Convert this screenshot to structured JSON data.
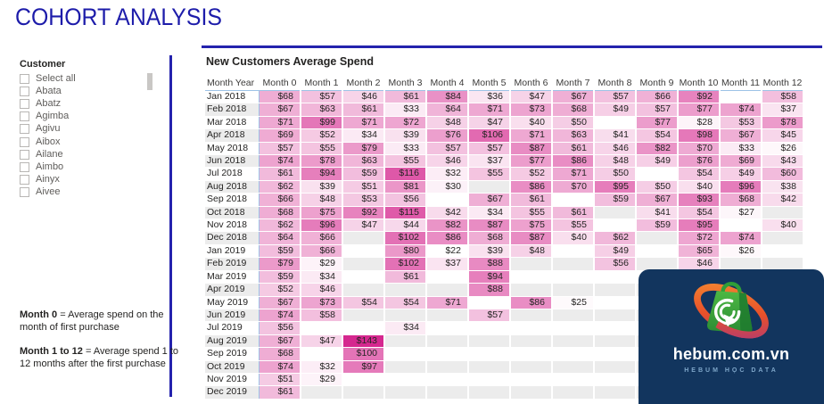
{
  "page": {
    "title": "COHORT ANALYSIS"
  },
  "colors": {
    "accent_blue": "#2422ad",
    "title_blue": "#1d1caa",
    "band_gray": "#ececec",
    "grid_blue": "#9dc3e6",
    "logo_navy": "#12355e",
    "logo_green": "#3fa63d",
    "logo_orange": "#f08030"
  },
  "icons": {
    "checkbox": "empty-square",
    "scrollbar_thumb": "gray-rect",
    "logo_mark": "shopping-bag-with-click-target-and-orange-ring"
  },
  "sidebar": {
    "filter_title": "Customer",
    "items": [
      "Select all",
      "Abata",
      "Abatz",
      "Agimba",
      "Agivu",
      "Aibox",
      "Ailane",
      "Aimbo",
      "Ainyx",
      "Aivee"
    ],
    "notes": [
      {
        "bold": "Month 0",
        "rest": " = Average spend on the month of first purchase"
      },
      {
        "bold": "Month 1 to 12",
        "rest": " = Average spend 1 to 12 months after the first purchase"
      }
    ]
  },
  "logo": {
    "domain": "hebum.com.vn",
    "tagline": "HEBUM HỌC DATA"
  },
  "chart_data": {
    "type": "heatmap",
    "title": "New Customers Average Spend",
    "corner_label": "Month Year",
    "value_prefix": "$",
    "color_scale": {
      "min": 22,
      "max": 143,
      "low": "#ffffff",
      "high": "#d5288f"
    },
    "x_labels": [
      "Month 0",
      "Month 1",
      "Month 2",
      "Month 3",
      "Month 4",
      "Month 5",
      "Month 6",
      "Month 7",
      "Month 8",
      "Month 9",
      "Month 10",
      "Month 11",
      "Month 12"
    ],
    "rows": [
      {
        "label": "Jan 2018",
        "values": [
          68,
          57,
          46,
          61,
          84,
          36,
          47,
          67,
          57,
          66,
          92,
          null,
          58
        ]
      },
      {
        "label": "Feb 2018",
        "values": [
          67,
          63,
          61,
          33,
          64,
          71,
          73,
          68,
          49,
          57,
          77,
          74,
          37
        ]
      },
      {
        "label": "Mar 2018",
        "values": [
          71,
          99,
          71,
          72,
          48,
          47,
          40,
          50,
          null,
          77,
          28,
          53,
          78
        ]
      },
      {
        "label": "Apr 2018",
        "values": [
          69,
          52,
          34,
          39,
          76,
          106,
          71,
          63,
          41,
          54,
          98,
          67,
          45
        ]
      },
      {
        "label": "May 2018",
        "values": [
          57,
          55,
          79,
          33,
          57,
          57,
          87,
          61,
          46,
          82,
          70,
          33,
          26
        ]
      },
      {
        "label": "Jun 2018",
        "values": [
          74,
          78,
          63,
          55,
          46,
          37,
          77,
          86,
          48,
          49,
          76,
          69,
          43
        ]
      },
      {
        "label": "Jul 2018",
        "values": [
          61,
          94,
          59,
          116,
          32,
          55,
          52,
          71,
          50,
          null,
          54,
          49,
          60
        ]
      },
      {
        "label": "Aug 2018",
        "values": [
          62,
          39,
          51,
          81,
          30,
          null,
          86,
          70,
          95,
          50,
          40,
          96,
          38
        ]
      },
      {
        "label": "Sep 2018",
        "values": [
          66,
          48,
          53,
          56,
          null,
          67,
          61,
          null,
          59,
          67,
          93,
          68,
          42
        ]
      },
      {
        "label": "Oct 2018",
        "values": [
          68,
          75,
          92,
          115,
          42,
          34,
          55,
          61,
          null,
          41,
          54,
          27,
          null
        ]
      },
      {
        "label": "Nov 2018",
        "values": [
          62,
          96,
          47,
          44,
          82,
          87,
          75,
          55,
          null,
          59,
          95,
          null,
          40
        ]
      },
      {
        "label": "Dec 2018",
        "values": [
          64,
          66,
          null,
          102,
          86,
          68,
          87,
          40,
          62,
          null,
          72,
          74,
          null
        ]
      },
      {
        "label": "Jan 2019",
        "values": [
          59,
          66,
          null,
          80,
          22,
          39,
          48,
          null,
          49,
          null,
          65,
          26,
          null
        ]
      },
      {
        "label": "Feb 2019",
        "values": [
          79,
          29,
          null,
          102,
          37,
          88,
          null,
          null,
          56,
          null,
          46,
          null,
          null
        ]
      },
      {
        "label": "Mar 2019",
        "values": [
          59,
          34,
          null,
          61,
          null,
          94,
          null,
          null,
          null,
          null,
          null,
          null,
          null
        ]
      },
      {
        "label": "Apr 2019",
        "values": [
          52,
          46,
          null,
          null,
          null,
          88,
          null,
          null,
          null,
          null,
          null,
          null,
          null
        ]
      },
      {
        "label": "May 2019",
        "values": [
          67,
          73,
          54,
          54,
          71,
          null,
          86,
          25,
          null,
          null,
          null,
          null,
          null
        ]
      },
      {
        "label": "Jun 2019",
        "values": [
          74,
          58,
          null,
          null,
          null,
          57,
          null,
          null,
          null,
          null,
          null,
          null,
          null
        ]
      },
      {
        "label": "Jul 2019",
        "values": [
          56,
          null,
          null,
          34,
          null,
          null,
          null,
          null,
          null,
          null,
          null,
          null,
          null
        ]
      },
      {
        "label": "Aug 2019",
        "values": [
          67,
          47,
          143,
          null,
          null,
          null,
          null,
          null,
          null,
          null,
          null,
          null,
          null
        ]
      },
      {
        "label": "Sep 2019",
        "values": [
          68,
          null,
          100,
          null,
          null,
          null,
          null,
          null,
          null,
          null,
          null,
          null,
          null
        ]
      },
      {
        "label": "Oct 2019",
        "values": [
          74,
          32,
          97,
          null,
          null,
          null,
          null,
          null,
          null,
          null,
          null,
          null,
          null
        ]
      },
      {
        "label": "Nov 2019",
        "values": [
          51,
          29,
          null,
          null,
          null,
          null,
          null,
          null,
          null,
          null,
          null,
          null,
          null
        ]
      },
      {
        "label": "Dec 2019",
        "values": [
          61,
          null,
          null,
          null,
          null,
          null,
          null,
          null,
          null,
          null,
          null,
          null,
          null
        ]
      }
    ]
  }
}
